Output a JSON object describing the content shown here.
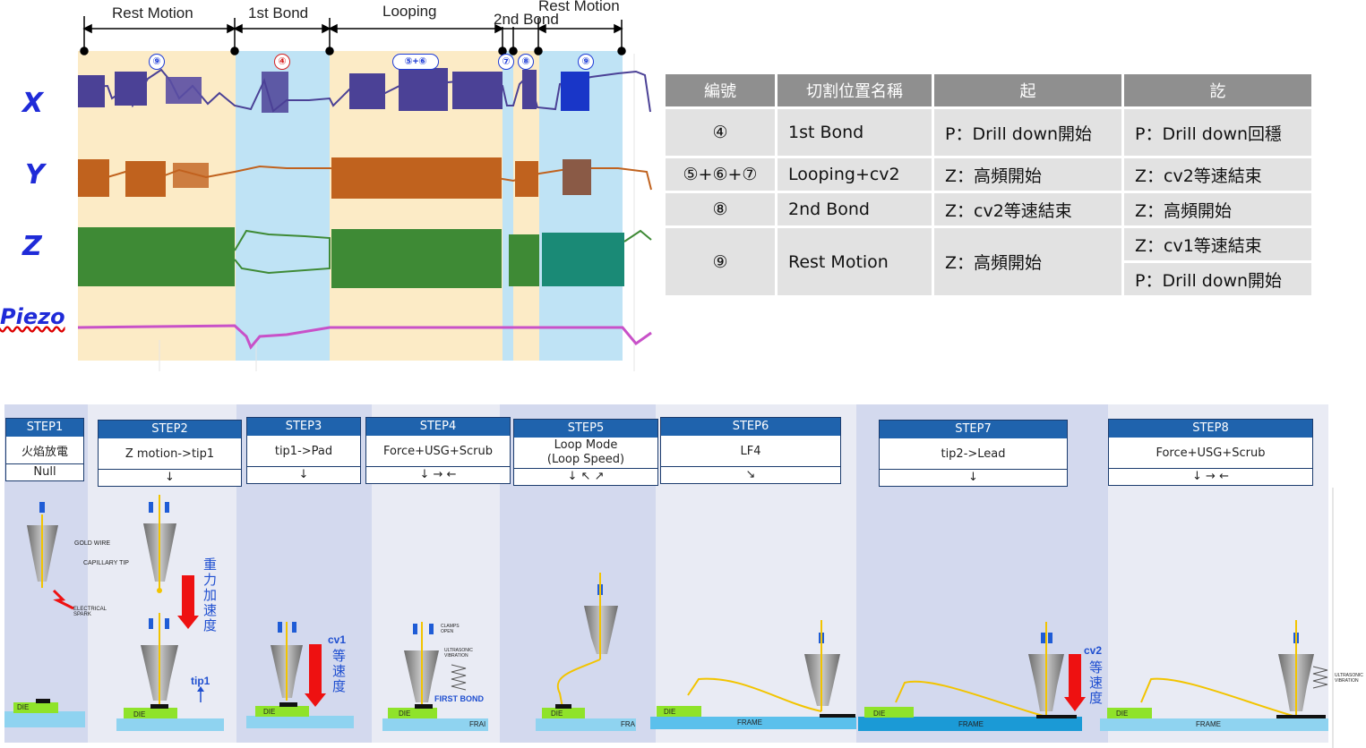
{
  "timeline": {
    "segments": [
      "Rest Motion",
      "1st Bond",
      "Looping",
      "2nd Bond",
      "Rest Motion"
    ],
    "markers": [
      "⑨",
      "④",
      "⑤+⑥",
      "⑦",
      "⑧",
      "⑨"
    ]
  },
  "axes": [
    "X",
    "Y",
    "Z",
    "Piezo"
  ],
  "signal_colors": {
    "X": "#4b4196",
    "Y": "#c0621e",
    "Z": "#3e8a35",
    "Piezo": "#c851c8"
  },
  "table": {
    "headers": [
      "編號",
      "切割位置名稱",
      "起",
      "訖"
    ],
    "rows": [
      {
        "id": "④",
        "name": "1st Bond",
        "start": "P：Drill down開始",
        "end": "P：Drill down回穩"
      },
      {
        "id": "⑤+⑥+⑦",
        "name": "Looping+cv2",
        "start": "Z：高頻開始",
        "end": "Z：cv2等速結束"
      },
      {
        "id": "⑧",
        "name": "2nd Bond",
        "start": "Z：cv2等速結束",
        "end": "Z：高頻開始"
      },
      {
        "id": "⑨",
        "name": "Rest Motion",
        "start": "Z：高頻開始",
        "end": "Z：cv1等速結束",
        "end2": "P：Drill down開始"
      }
    ]
  },
  "steps": [
    {
      "head": "STEP1",
      "desc": "火焰放電",
      "arrow": "Null"
    },
    {
      "head": "STEP2",
      "desc": "Z motion->tip1",
      "arrow": "↓"
    },
    {
      "head": "STEP3",
      "desc": "tip1->Pad",
      "arrow": "↓"
    },
    {
      "head": "STEP4",
      "desc": "Force+USG+Scrub",
      "arrow": "↓ → ←"
    },
    {
      "head": "STEP5",
      "desc": "Loop Mode\n(Loop Speed)",
      "arrow": "↓ ↖ ↗"
    },
    {
      "head": "STEP6",
      "desc": "LF4",
      "arrow": "↘"
    },
    {
      "head": "STEP7",
      "desc": "tip2->Lead",
      "arrow": "↓"
    },
    {
      "head": "STEP8",
      "desc": "Force+USG+Scrub",
      "arrow": "↓ → ←"
    }
  ],
  "diagram_labels": {
    "gold_wire": "GOLD WIRE",
    "capillary_tip": "CAPILLARY TIP",
    "electrical_spark": "ELECTRICAL SPARK",
    "gravity": "重力加速度",
    "tip1": "tip1",
    "cv1": "cv1",
    "const_speed": "等速度",
    "clamps_open": "CLAMPS OPEN",
    "ultrasonic": "ULTRASONIC VIBRATION",
    "first_bond": "FIRST BOND",
    "cv2": "cv2",
    "die": "DIE",
    "frame": "FRAME",
    "frame_short": "FRA",
    "frame_short2": "FRAI"
  }
}
